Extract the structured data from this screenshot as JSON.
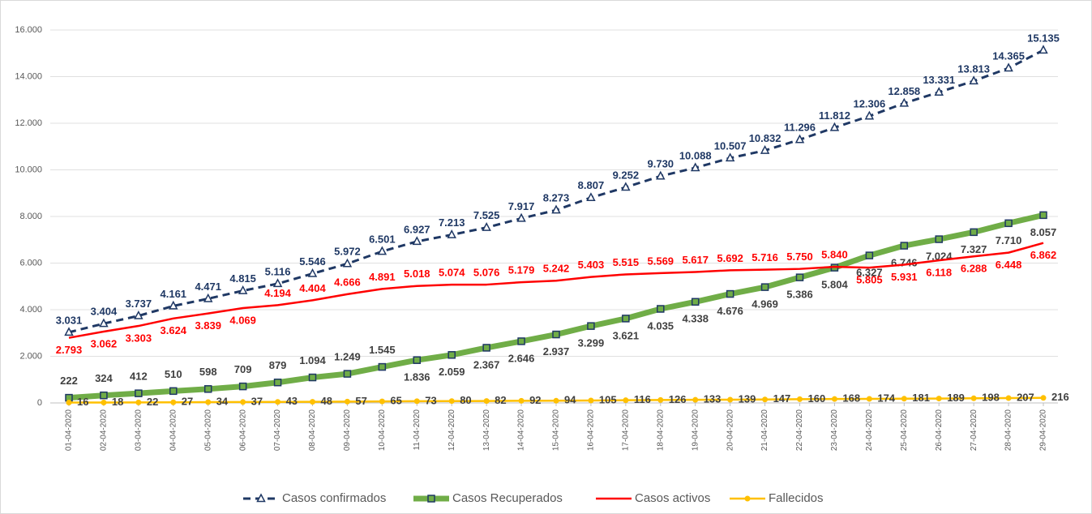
{
  "chart_data": {
    "type": "line",
    "categories": [
      "01-04-2020",
      "02-04-2020",
      "03-04-2020",
      "04-04-2020",
      "05-04-2020",
      "06-04-2020",
      "07-04-2020",
      "08-04-2020",
      "09-04-2020",
      "10-04-2020",
      "11-04-2020",
      "12-04-2020",
      "13-04-2020",
      "14-04-2020",
      "15-04-2020",
      "16-04-2020",
      "17-04-2020",
      "18-04-2020",
      "19-04-2020",
      "20-04-2020",
      "21-04-2020",
      "22-04-2020",
      "23-04-2020",
      "24-04-2020",
      "25-04-2020",
      "26-04-2020",
      "27-04-2020",
      "28-04-2020",
      "29-04-2020"
    ],
    "ylim": [
      0,
      16000
    ],
    "yticks": [
      0,
      {
        "value": 2000,
        "label": "2.000"
      },
      {
        "value": 4000,
        "label": "4.000"
      },
      {
        "value": 6000,
        "label": "6.000"
      },
      {
        "value": 8000,
        "label": "8.000"
      },
      {
        "value": 10000,
        "label": "10.000"
      },
      {
        "value": 12000,
        "label": "12.000"
      },
      {
        "value": 14000,
        "label": "14.000"
      },
      {
        "value": 16000,
        "label": "16.000"
      }
    ],
    "grid": true,
    "legend": "bottom",
    "series": [
      {
        "name": "Casos confirmados",
        "color": "#1f3864",
        "style": "dashed",
        "marker": "triangle",
        "values": [
          3031,
          3404,
          3737,
          4161,
          4471,
          4815,
          5116,
          5546,
          5972,
          6501,
          6927,
          7213,
          7525,
          7917,
          8273,
          8807,
          9252,
          9730,
          10088,
          10507,
          10832,
          11296,
          11812,
          12306,
          12858,
          13331,
          13813,
          14365,
          15135
        ],
        "value_labels": [
          "3.031",
          "3.404",
          "3.737",
          "4.161",
          "4.471",
          "4.815",
          "5.116",
          "5.546",
          "5.972",
          "6.501",
          "6.927",
          "7.213",
          "7.525",
          "7.917",
          "8.273",
          "8.807",
          "9.252",
          "9.730",
          "10.088",
          "10.507",
          "10.832",
          "11.296",
          "11.812",
          "12.306",
          "12.858",
          "13.331",
          "13.813",
          "14.365",
          "15.135"
        ]
      },
      {
        "name": "Casos Recuperados",
        "color": "#70ad47",
        "style": "thick",
        "marker": "square",
        "values": [
          222,
          324,
          412,
          510,
          598,
          709,
          879,
          1094,
          1249,
          1545,
          1836,
          2059,
          2367,
          2646,
          2937,
          3299,
          3621,
          4035,
          4338,
          4676,
          4969,
          5386,
          5804,
          6327,
          6746,
          7024,
          7327,
          7710,
          8057
        ],
        "value_labels": [
          "222",
          "324",
          "412",
          "510",
          "598",
          "709",
          "879",
          "1.094",
          "1.249",
          "1.545",
          "1.836",
          "2.059",
          "2.367",
          "2.646",
          "2.937",
          "3.299",
          "3.621",
          "4.035",
          "4.338",
          "4.676",
          "4.969",
          "5.386",
          "5.804",
          "6.327",
          "6.746",
          "7.024",
          "7.327",
          "7.710",
          "8.057"
        ]
      },
      {
        "name": "Casos activos",
        "color": "#ff0000",
        "style": "solid",
        "marker": "none",
        "values": [
          2793,
          3062,
          3303,
          3624,
          3839,
          4069,
          4194,
          4404,
          4666,
          4891,
          5018,
          5074,
          5076,
          5179,
          5242,
          5403,
          5515,
          5569,
          5617,
          5692,
          5716,
          5750,
          5840,
          5805,
          5931,
          6118,
          6288,
          6448,
          6862
        ],
        "value_labels": [
          "2.793",
          "3.062",
          "3.303",
          "3.624",
          "3.839",
          "4.069",
          "4.194",
          "4.404",
          "4.666",
          "4.891",
          "5.018",
          "5.074",
          "5.076",
          "5.179",
          "5.242",
          "5.403",
          "5.515",
          "5.569",
          "5.617",
          "5.692",
          "5.716",
          "5.750",
          "5.840",
          "5.805",
          "5.931",
          "6.118",
          "6.288",
          "6.448",
          "6.862"
        ]
      },
      {
        "name": "Fallecidos",
        "color": "#ffc000",
        "style": "solid",
        "marker": "circle",
        "values": [
          16,
          18,
          22,
          27,
          34,
          37,
          43,
          48,
          57,
          65,
          73,
          80,
          82,
          92,
          94,
          105,
          116,
          126,
          133,
          139,
          147,
          160,
          168,
          174,
          181,
          189,
          198,
          207,
          216
        ]
      }
    ]
  }
}
